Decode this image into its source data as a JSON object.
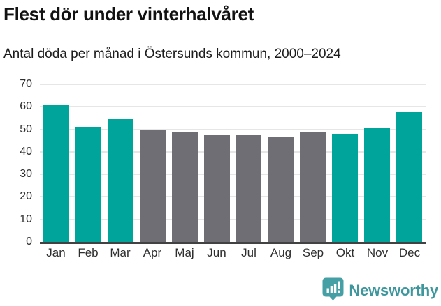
{
  "header": {
    "title": "Flest dör under vinterhalvåret",
    "subtitle": "Antal döda per månad i Östersunds kommun, 2000–2024"
  },
  "chart_data": {
    "type": "bar",
    "title": "Flest dör under vinterhalvåret",
    "subtitle": "Antal döda per månad i Östersunds kommun, 2000–2024",
    "categories": [
      "Jan",
      "Feb",
      "Mar",
      "Apr",
      "Maj",
      "Jun",
      "Jul",
      "Aug",
      "Sep",
      "Okt",
      "Nov",
      "Dec"
    ],
    "values": [
      61,
      51,
      54.5,
      50,
      49,
      47.5,
      47.5,
      46.5,
      48.5,
      48,
      50.5,
      57.5
    ],
    "bar_colors": [
      "highlight",
      "highlight",
      "highlight",
      "muted",
      "muted",
      "muted",
      "muted",
      "muted",
      "muted",
      "highlight",
      "highlight",
      "highlight"
    ],
    "colors": {
      "highlight": "#00A49B",
      "muted": "#6E6E74"
    },
    "xlabel": "",
    "ylabel": "",
    "ylim": [
      0,
      70
    ],
    "yticks": [
      0,
      10,
      20,
      30,
      40,
      50,
      60,
      70
    ],
    "grid": true,
    "legend": false
  },
  "footer": {
    "brand": "Newsworthy",
    "brand_color": "#3E979D",
    "logo_icon": "bar-chart-speech-bubble-icon"
  }
}
